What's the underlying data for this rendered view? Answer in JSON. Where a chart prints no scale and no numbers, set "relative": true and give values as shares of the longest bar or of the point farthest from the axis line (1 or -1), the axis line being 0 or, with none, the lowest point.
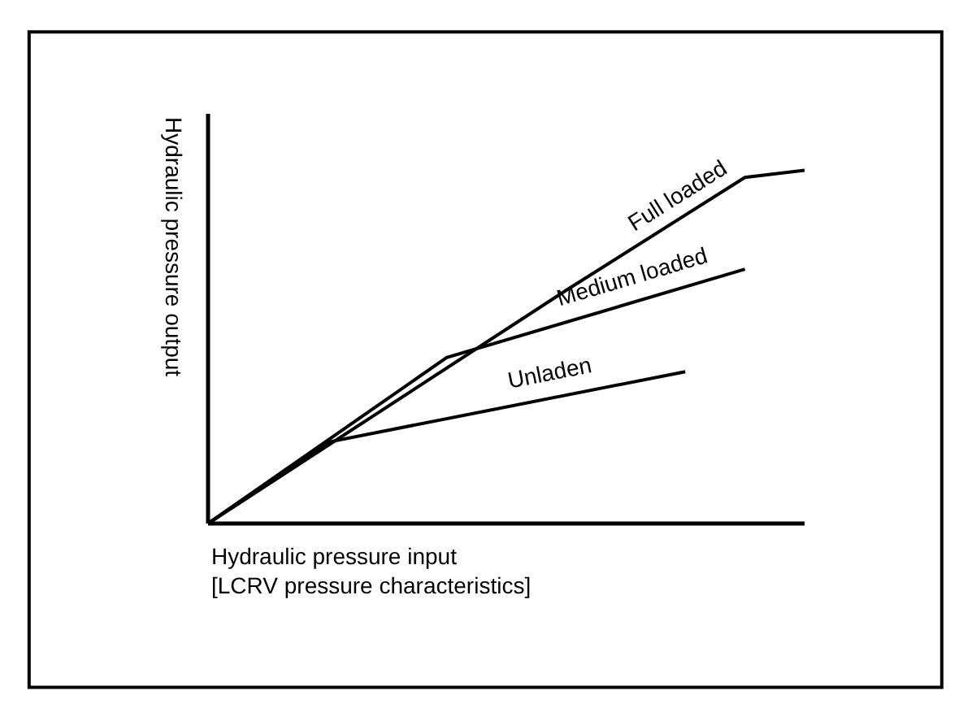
{
  "chart_data": {
    "type": "line",
    "relative": true,
    "categories": [
      null,
      null,
      null,
      null,
      null,
      null,
      null,
      null,
      null,
      null,
      null
    ],
    "xlabel": "Hydraulic pressure input\n[LCRV pressure characteristics]",
    "ylabel": "Hydraulic pressure output",
    "legend": false,
    "marker": "none",
    "line_style": "solid",
    "series": [
      {
        "name": "Full loaded",
        "color": "#000000",
        "values": [
          0,
          null,
          null,
          null,
          null,
          null,
          0.66,
          null,
          null,
          0.98,
          1.0
        ]
      },
      {
        "name": "Medium loaded",
        "color": "#000000",
        "values": [
          0,
          null,
          null,
          null,
          0.47,
          null,
          null,
          null,
          null,
          0.72,
          null
        ]
      },
      {
        "name": "Unladen",
        "color": "#000000",
        "values": [
          0,
          null,
          0.23,
          null,
          null,
          null,
          null,
          null,
          0.43,
          null,
          null
        ]
      }
    ]
  }
}
